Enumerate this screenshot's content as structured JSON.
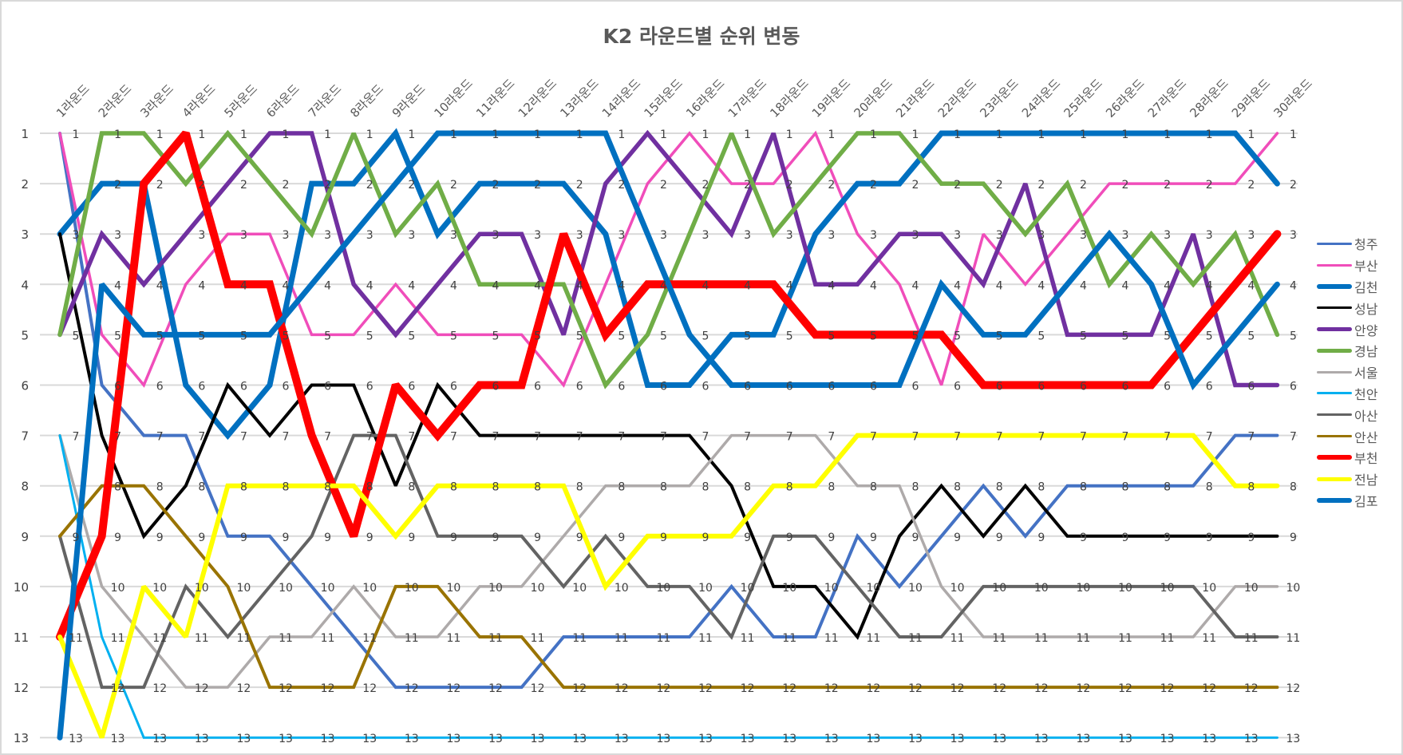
{
  "chart_data": {
    "type": "line",
    "title": "K2 라운드별 순위 변동",
    "xlabel": "",
    "ylabel": "",
    "ylim": [
      13,
      1
    ],
    "y_inverted": true,
    "y_ticks": [
      1,
      2,
      3,
      4,
      5,
      6,
      7,
      8,
      9,
      10,
      11,
      12,
      13
    ],
    "grid": true,
    "legend_position": "right",
    "data_labels": true,
    "categories": [
      "1라운드",
      "2라운드",
      "3라운드",
      "4라운드",
      "5라운드",
      "6라운드",
      "7라운드",
      "8라운드",
      "9라운드",
      "10라운드",
      "11라운드",
      "12라운드",
      "13라운드",
      "14라운드",
      "15라운드",
      "16라운드",
      "17라운드",
      "18라운드",
      "19라운드",
      "20라운드",
      "21라운드",
      "22라운드",
      "23라운드",
      "24라운드",
      "25라운드",
      "26라운드",
      "27라운드",
      "28라운드",
      "29라운드",
      "30라운드"
    ],
    "series": [
      {
        "name": "청주",
        "color": "#4472C4",
        "width": 4,
        "values": [
          1,
          6,
          7,
          7,
          9,
          9,
          10,
          11,
          12,
          12,
          12,
          12,
          11,
          11,
          11,
          11,
          10,
          11,
          11,
          9,
          10,
          9,
          8,
          9,
          8,
          8,
          8,
          8,
          7,
          7
        ]
      },
      {
        "name": "부산",
        "color": "#F04DBA",
        "width": 3.5,
        "values": [
          1,
          5,
          6,
          4,
          3,
          3,
          5,
          5,
          4,
          5,
          5,
          5,
          6,
          4,
          2,
          1,
          2,
          2,
          1,
          3,
          4,
          6,
          3,
          4,
          3,
          2,
          2,
          2,
          2,
          1
        ]
      },
      {
        "name": "김천",
        "color": "#0070C0",
        "width": 7,
        "values": [
          3,
          2,
          2,
          6,
          7,
          6,
          2,
          2,
          1,
          3,
          2,
          2,
          2,
          3,
          6,
          6,
          5,
          5,
          3,
          2,
          2,
          1,
          1,
          1,
          1,
          1,
          1,
          1,
          1,
          2
        ]
      },
      {
        "name": "성남",
        "color": "#000000",
        "width": 4,
        "values": [
          3,
          7,
          9,
          8,
          6,
          7,
          6,
          6,
          8,
          6,
          7,
          7,
          7,
          7,
          7,
          7,
          8,
          10,
          10,
          11,
          9,
          8,
          9,
          8,
          9,
          9,
          9,
          9,
          9,
          9
        ]
      },
      {
        "name": "안양",
        "color": "#7030A0",
        "width": 5.5,
        "values": [
          5,
          3,
          4,
          3,
          2,
          1,
          1,
          4,
          5,
          4,
          3,
          3,
          5,
          2,
          1,
          2,
          3,
          1,
          4,
          4,
          3,
          3,
          4,
          2,
          5,
          5,
          5,
          3,
          6,
          6
        ]
      },
      {
        "name": "경남",
        "color": "#70AD47",
        "width": 5.5,
        "values": [
          5,
          1,
          1,
          2,
          1,
          2,
          3,
          1,
          3,
          2,
          4,
          4,
          4,
          6,
          5,
          3,
          1,
          3,
          2,
          1,
          1,
          2,
          2,
          3,
          2,
          4,
          3,
          4,
          3,
          5
        ]
      },
      {
        "name": "서울",
        "color": "#AEAAAA",
        "width": 3.5,
        "values": [
          7,
          10,
          11,
          12,
          12,
          11,
          11,
          10,
          11,
          11,
          10,
          10,
          9,
          8,
          8,
          8,
          7,
          7,
          7,
          8,
          8,
          10,
          11,
          11,
          11,
          11,
          11,
          11,
          10,
          10
        ]
      },
      {
        "name": "천안",
        "color": "#00B0F0",
        "width": 3,
        "values": [
          7,
          11,
          13,
          13,
          13,
          13,
          13,
          13,
          13,
          13,
          13,
          13,
          13,
          13,
          13,
          13,
          13,
          13,
          13,
          13,
          13,
          13,
          13,
          13,
          13,
          13,
          13,
          13,
          13,
          13
        ]
      },
      {
        "name": "아산",
        "color": "#636363",
        "width": 4,
        "values": [
          9,
          12,
          12,
          10,
          11,
          10,
          9,
          7,
          7,
          9,
          9,
          9,
          10,
          9,
          10,
          10,
          11,
          9,
          9,
          10,
          11,
          11,
          10,
          10,
          10,
          10,
          10,
          10,
          11,
          11
        ]
      },
      {
        "name": "안산",
        "color": "#997300",
        "width": 4,
        "values": [
          9,
          8,
          8,
          9,
          10,
          12,
          12,
          12,
          10,
          10,
          11,
          11,
          12,
          12,
          12,
          12,
          12,
          12,
          12,
          12,
          12,
          12,
          12,
          12,
          12,
          12,
          12,
          12,
          12,
          12
        ]
      },
      {
        "name": "부천",
        "color": "#FF0000",
        "width": 10,
        "values": [
          11,
          9,
          2,
          1,
          4,
          4,
          7,
          9,
          6,
          7,
          6,
          6,
          3,
          5,
          4,
          4,
          4,
          4,
          5,
          5,
          5,
          5,
          6,
          6,
          6,
          6,
          6,
          5,
          4,
          3
        ]
      },
      {
        "name": "전남",
        "color": "#FFFF00",
        "width": 6,
        "values": [
          11,
          13,
          10,
          11,
          8,
          8,
          8,
          8,
          9,
          8,
          8,
          8,
          8,
          10,
          9,
          9,
          9,
          8,
          8,
          7,
          7,
          7,
          7,
          7,
          7,
          7,
          7,
          7,
          8,
          8
        ]
      },
      {
        "name": "김포",
        "color": "#0070C0",
        "width": 7,
        "values": [
          13,
          4,
          5,
          5,
          5,
          5,
          4,
          3,
          2,
          1,
          1,
          1,
          1,
          1,
          3,
          5,
          6,
          6,
          6,
          6,
          6,
          4,
          5,
          5,
          4,
          3,
          4,
          6,
          5,
          4
        ]
      }
    ]
  }
}
